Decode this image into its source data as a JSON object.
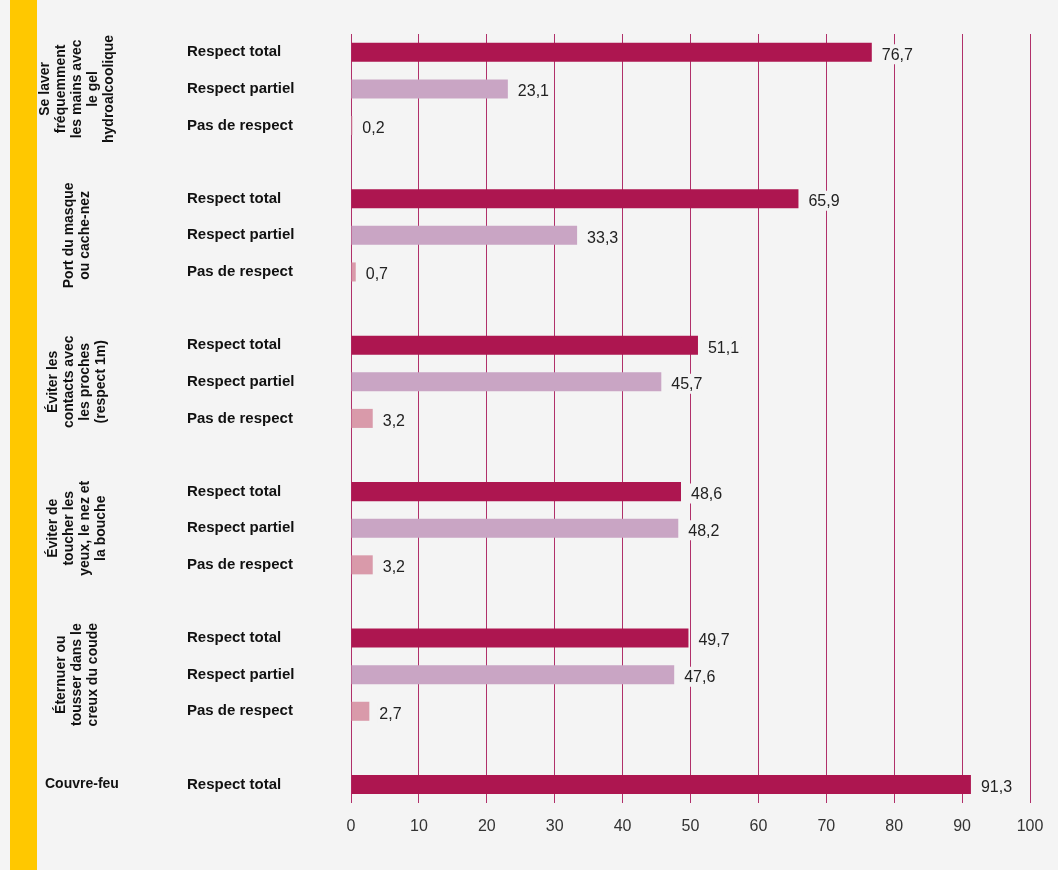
{
  "chart_data": {
    "type": "bar",
    "orientation": "horizontal",
    "categories": [
      "Respect total",
      "Respect partiel",
      "Pas de respect",
      null,
      "Respect total",
      "Respect partiel",
      "Pas de respect",
      null,
      "Respect total",
      "Respect partiel",
      "Pas de respect",
      null,
      "Respect total",
      "Respect partiel",
      "Pas de respect",
      null,
      "Respect total",
      "Respect partiel",
      "Pas de respect",
      null,
      "Respect total"
    ],
    "values": [
      76.7,
      23.1,
      0.2,
      null,
      65.9,
      33.3,
      0.7,
      null,
      51.1,
      45.7,
      3.2,
      null,
      48.6,
      48.2,
      3.2,
      null,
      49.7,
      47.6,
      2.7,
      null,
      91.3
    ],
    "colors": [
      "#ad1650",
      "#c9a5c4",
      "#d99aaa",
      null,
      "#ad1650",
      "#c9a5c4",
      "#d99aaa",
      null,
      "#ad1650",
      "#c9a5c4",
      "#d99aaa",
      null,
      "#ad1650",
      "#c9a5c4",
      "#d99aaa",
      null,
      "#ad1650",
      "#c9a5c4",
      "#d99aaa",
      null,
      "#ad1650"
    ],
    "value_labels": [
      "76,7",
      "23,1",
      "0,2",
      null,
      "65,9",
      "33,3",
      "0,7",
      null,
      "51,1",
      "45,7",
      "3,2",
      null,
      "48,6",
      "48,2",
      "3,2",
      null,
      "49,7",
      "47,6",
      "2,7",
      null,
      "91,3"
    ],
    "annotations": [
      "Se laver fréquemment les mains avec le gel hydroalcoolique",
      "Port du masque ou cache-nez",
      "Éviter les contacts avec les proches (respect 1m)",
      "Éviter de toucher les yeux, le nez et la bouche",
      "Éternuer ou tousser dans le creux du coude",
      "Couvre-feu"
    ],
    "xlim": [
      0,
      100
    ],
    "xticks": [
      0,
      10,
      20,
      30,
      40,
      50,
      60,
      70,
      80,
      90,
      100
    ],
    "grid": "x",
    "legend": false
  }
}
